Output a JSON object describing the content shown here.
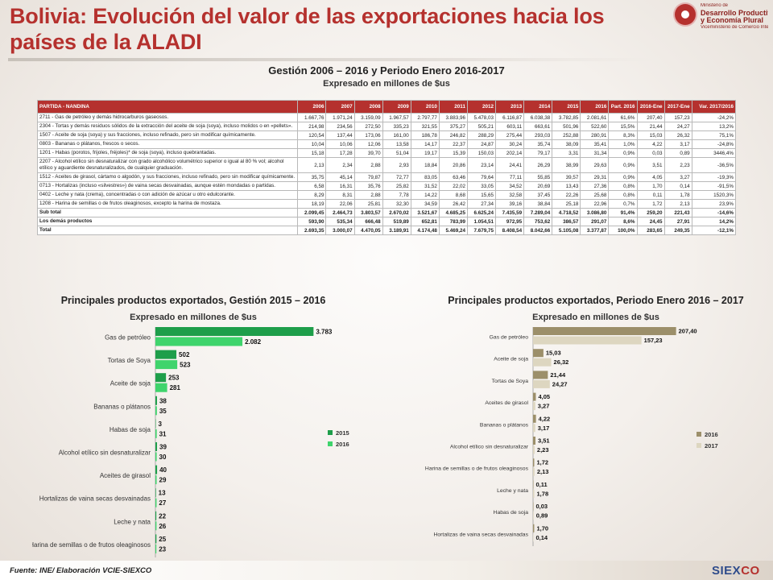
{
  "header": {
    "title": "Bolivia: Evolución del valor de las exportaciones hacia los países de la ALADI",
    "subtitle": "Gestión 2006 – 2016 y Periodo Enero 2016-2017",
    "units": "Expresado en millones de $us"
  },
  "logo": {
    "line1": "Ministerio de",
    "line2": "Desarrollo Productivo",
    "line3": "y Economía Plural",
    "line4": "Viceministerio de Comercio Interno y Exportaciones"
  },
  "table": {
    "headers": [
      "PARTIDA - NANDINA",
      "2006",
      "2007",
      "2008",
      "2009",
      "2010",
      "2011",
      "2012",
      "2013",
      "2014",
      "2015",
      "2016",
      "Part. 2016",
      "2016-Ene",
      "2017-Ene",
      "Var. 2017/2016"
    ],
    "rows": [
      [
        "2711 - Gas de petróleo y demás hidrocarburos gaseosos.",
        "1.667,76",
        "1.971,24",
        "3.159,09",
        "1.967,57",
        "2.797,77",
        "3.883,96",
        "5.478,03",
        "6.116,87",
        "6.038,38",
        "3.782,85",
        "2.081,61",
        "61,6%",
        "207,40",
        "157,23",
        "-24,2%"
      ],
      [
        "2304 - Tortas y demás residuos sólidos de la extracción del aceite de soja (soya), incluso molidos o en «pellets».",
        "214,98",
        "234,56",
        "272,50",
        "335,23",
        "321,55",
        "375,27",
        "505,21",
        "603,11",
        "663,61",
        "501,96",
        "522,60",
        "15,5%",
        "21,44",
        "24,27",
        "13,2%"
      ],
      [
        "1507 - Aceite de soja (soya) y sus fracciones, incluso refinado, pero sin modificar químicamente.",
        "120,54",
        "137,44",
        "173,06",
        "161,00",
        "186,78",
        "246,82",
        "288,29",
        "275,44",
        "293,03",
        "252,88",
        "280,91",
        "8,3%",
        "15,03",
        "26,32",
        "75,1%"
      ],
      [
        "0803 - Bananas o plátanos, frescos o secos.",
        "10,04",
        "10,06",
        "12,06",
        "13,58",
        "14,17",
        "22,37",
        "24,87",
        "30,24",
        "35,74",
        "38,09",
        "35,41",
        "1,0%",
        "4,22",
        "3,17",
        "-24,8%"
      ],
      [
        "1201 - Habas (porotos, frijoles, fréjoles)* de soja (soya), incluso quebrantadas.",
        "15,18",
        "17,28",
        "39,70",
        "51,04",
        "19,17",
        "15,39",
        "150,03",
        "202,14",
        "79,17",
        "3,31",
        "31,34",
        "0,9%",
        "0,03",
        "0,89",
        "3446,4%"
      ],
      [
        "2207 - Alcohol etílico sin desnaturalizar con grado alcohólico volumétrico superior o igual al 80 % vol; alcohol etílico y aguardiente desnaturalizados, de cualquier graduación.",
        "2,13",
        "2,34",
        "2,88",
        "2,93",
        "18,84",
        "20,86",
        "23,14",
        "24,41",
        "26,29",
        "38,99",
        "29,63",
        "0,9%",
        "3,51",
        "2,23",
        "-36,5%"
      ],
      [
        "1512 - Aceites de girasol, cártamo o algodón, y sus fracciones, incluso refinado, pero sin modificar químicamente.",
        "35,75",
        "45,14",
        "79,87",
        "72,77",
        "83,05",
        "63,46",
        "79,64",
        "77,11",
        "55,85",
        "39,57",
        "29,31",
        "0,9%",
        "4,05",
        "3,27",
        "-19,3%"
      ],
      [
        "0713 - Hortalizas (incluso «silvestres») de vaina secas desvainadas, aunque estén mondadas o partidas.",
        "6,58",
        "16,31",
        "35,76",
        "25,82",
        "31,52",
        "22,02",
        "33,05",
        "34,52",
        "20,69",
        "13,43",
        "27,36",
        "0,8%",
        "1,70",
        "0,14",
        "-91,5%"
      ],
      [
        "0402 - Leche y nata (crema), concentradas o con adición de azúcar u otro edulcorante.",
        "8,29",
        "8,31",
        "2,88",
        "7,78",
        "14,22",
        "8,68",
        "15,65",
        "32,58",
        "37,45",
        "22,26",
        "25,68",
        "0,8%",
        "0,11",
        "1,78",
        "1520,3%"
      ],
      [
        "1208 - Harina de semillas o de frutos oleaginosos, excepto la harina de mostaza.",
        "18,19",
        "22,06",
        "25,81",
        "32,30",
        "34,59",
        "26,42",
        "27,34",
        "39,16",
        "38,84",
        "25,18",
        "22,96",
        "0,7%",
        "1,72",
        "2,13",
        "23,9%"
      ]
    ],
    "totals": [
      [
        "Sub total",
        "2.099,45",
        "2.464,73",
        "3.803,57",
        "2.670,02",
        "3.521,67",
        "4.685,25",
        "6.625,24",
        "7.435,59",
        "7.289,04",
        "4.718,52",
        "3.086,80",
        "91,4%",
        "259,20",
        "221,43",
        "-14,6%"
      ],
      [
        "Los demás productos",
        "593,90",
        "535,34",
        "666,48",
        "519,89",
        "652,81",
        "783,99",
        "1.054,51",
        "972,95",
        "753,62",
        "386,57",
        "291,07",
        "8,6%",
        "24,45",
        "27,91",
        "14,2%"
      ],
      [
        "Total",
        "2.693,35",
        "3.000,07",
        "4.470,05",
        "3.189,91",
        "4.174,48",
        "5.469,24",
        "7.679,75",
        "8.408,54",
        "8.042,66",
        "5.105,08",
        "3.377,87",
        "100,0%",
        "283,65",
        "249,35",
        "-12,1%"
      ]
    ]
  },
  "chart_data": [
    {
      "type": "bar",
      "orientation": "horizontal",
      "title": "Principales productos exportados, Gestión 2015 – 2016",
      "subtitle": "Expresado en millones de $us",
      "categories": [
        "Gas de petróleo",
        "Tortas de Soya",
        "Aceite de soja",
        "Bananas o plátanos",
        "Habas de soja",
        "Alcohol etílico sin desnaturalizar",
        "Aceites de girasol",
        "Hortalizas de vaina secas desvainadas",
        "Leche y nata",
        "Harina de semillas o de frutos oleaginosos"
      ],
      "series": [
        {
          "name": "2015",
          "color": "#1e9e4a",
          "values": [
            3783,
            502,
            253,
            38,
            3,
            39,
            40,
            13,
            22,
            25
          ],
          "labels": [
            "3.783",
            "502",
            "253",
            "38",
            "3",
            "39",
            "40",
            "13",
            "22",
            "25"
          ]
        },
        {
          "name": "2016",
          "color": "#3fd46c",
          "values": [
            2082,
            523,
            281,
            35,
            31,
            30,
            29,
            27,
            26,
            23
          ],
          "labels": [
            "2.082",
            "523",
            "281",
            "35",
            "31",
            "30",
            "29",
            "27",
            "26",
            "23"
          ]
        }
      ],
      "xlim": [
        0,
        4200
      ],
      "legend": "right"
    },
    {
      "type": "bar",
      "orientation": "horizontal",
      "title": "Principales productos exportados, Periodo Enero 2016 – 2017",
      "subtitle": "Expresado en millones de $us",
      "categories": [
        "Gas de petróleo",
        "Aceite de soja",
        "Tortas de Soya",
        "Aceites de girasol",
        "Bananas o plátanos",
        "Alcohol etílico sin desnaturalizar",
        "Harina de semillas o de frutos oleaginosos",
        "Leche y nata",
        "Habas de soja",
        "Hortalizas de vaina secas desvainadas"
      ],
      "series": [
        {
          "name": "2016",
          "color": "#9c8f6a",
          "values": [
            207.4,
            15.03,
            21.44,
            4.05,
            4.22,
            3.51,
            1.72,
            0.11,
            0.03,
            1.7
          ],
          "labels": [
            "207,40",
            "15,03",
            "21,44",
            "4,05",
            "4,22",
            "3,51",
            "1,72",
            "0,11",
            "0,03",
            "1,70"
          ]
        },
        {
          "name": "2017",
          "color": "#ddd6c0",
          "values": [
            157.23,
            26.32,
            24.27,
            3.27,
            3.17,
            2.23,
            2.13,
            1.78,
            0.89,
            0.14
          ],
          "labels": [
            "157,23",
            "26,32",
            "24,27",
            "3,27",
            "3,17",
            "2,23",
            "2,13",
            "1,78",
            "0,89",
            "0,14"
          ]
        }
      ],
      "xlim": [
        0,
        230
      ],
      "legend": "right"
    }
  ],
  "footer": {
    "source": "Fuente: INE/ Elaboración VCIE-SIEXCO",
    "brand_a": "SIEX",
    "brand_b": "CO"
  }
}
